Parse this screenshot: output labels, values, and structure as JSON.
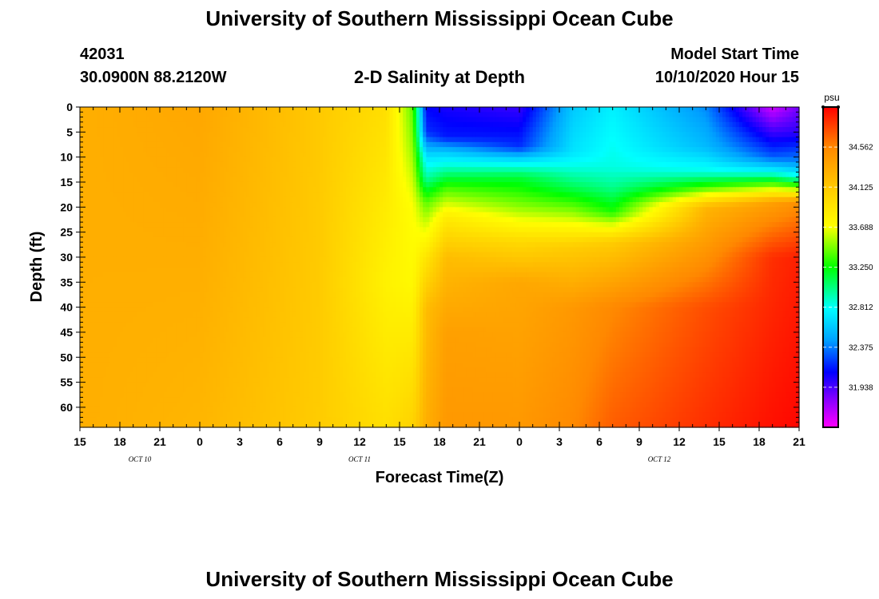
{
  "header": {
    "title_top": "University of Southern Mississippi Ocean Cube",
    "station_id": "42031",
    "station_coords": "30.0900N 88.2120W",
    "plot_title": "2-D Salinity at Depth",
    "model_start_label": "Model Start Time",
    "model_start_value": "10/10/2020 Hour 15"
  },
  "footer": {
    "title_bottom": "University of Southern Mississippi Ocean Cube"
  },
  "chart_data": {
    "type": "heatmap",
    "title": "2-D Salinity at Depth",
    "xlabel": "Forecast Time(Z)",
    "ylabel": "Depth (ft)",
    "unit": "psu",
    "x_hours_range": [
      0,
      54
    ],
    "x_ticks": [
      {
        "hour": 0,
        "label": "15"
      },
      {
        "hour": 3,
        "label": "18"
      },
      {
        "hour": 6,
        "label": "21"
      },
      {
        "hour": 9,
        "label": "0"
      },
      {
        "hour": 12,
        "label": "3"
      },
      {
        "hour": 15,
        "label": "6"
      },
      {
        "hour": 18,
        "label": "9"
      },
      {
        "hour": 21,
        "label": "12"
      },
      {
        "hour": 24,
        "label": "15"
      },
      {
        "hour": 27,
        "label": "18"
      },
      {
        "hour": 30,
        "label": "21"
      },
      {
        "hour": 33,
        "label": "0"
      },
      {
        "hour": 36,
        "label": "3"
      },
      {
        "hour": 39,
        "label": "6"
      },
      {
        "hour": 42,
        "label": "9"
      },
      {
        "hour": 45,
        "label": "12"
      },
      {
        "hour": 48,
        "label": "15"
      },
      {
        "hour": 51,
        "label": "18"
      },
      {
        "hour": 54,
        "label": "21"
      }
    ],
    "date_labels": [
      {
        "hour": 4.5,
        "label": "OCT 10"
      },
      {
        "hour": 21,
        "label": "OCT 11"
      },
      {
        "hour": 43.5,
        "label": "OCT 12"
      }
    ],
    "ylim": [
      0,
      64
    ],
    "y_ticks": [
      0,
      5,
      10,
      15,
      20,
      25,
      30,
      35,
      40,
      45,
      50,
      55,
      60
    ],
    "colorbar": {
      "min": 31.5,
      "max": 35.0,
      "ticks": [
        34.562,
        34.125,
        33.688,
        33.25,
        32.812,
        32.375,
        31.938
      ],
      "tick_labels": [
        "34.562",
        "34.125",
        "33.688",
        "33.250",
        "32.812",
        "32.375",
        "31.938"
      ],
      "stops": [
        {
          "value": 31.5,
          "color": "#ff00ff"
        },
        {
          "value": 31.8,
          "color": "#8800ff"
        },
        {
          "value": 32.1,
          "color": "#0000ff"
        },
        {
          "value": 32.45,
          "color": "#00a0ff"
        },
        {
          "value": 32.8,
          "color": "#00ffff"
        },
        {
          "value": 33.25,
          "color": "#00ff00"
        },
        {
          "value": 33.7,
          "color": "#ffff00"
        },
        {
          "value": 34.1,
          "color": "#ffcc00"
        },
        {
          "value": 34.56,
          "color": "#ff8800"
        },
        {
          "value": 35.0,
          "color": "#ff0000"
        }
      ]
    },
    "profiles": [
      {
        "hour": 0,
        "depths": [
          0,
          64
        ],
        "values": [
          34.3,
          34.3
        ]
      },
      {
        "hour": 9,
        "depths": [
          0,
          64
        ],
        "values": [
          34.35,
          34.25
        ]
      },
      {
        "hour": 18,
        "depths": [
          0,
          64
        ],
        "values": [
          34.12,
          34.1
        ]
      },
      {
        "hour": 23,
        "depths": [
          0,
          20,
          35,
          64
        ],
        "values": [
          33.95,
          33.85,
          33.8,
          33.95
        ]
      },
      {
        "hour": 25,
        "depths": [
          0,
          8,
          20,
          35,
          64
        ],
        "values": [
          33.4,
          33.5,
          33.7,
          33.75,
          34.05
        ]
      },
      {
        "hour": 26,
        "depths": [
          0,
          5,
          10,
          14,
          19,
          23,
          30,
          40,
          64
        ],
        "values": [
          32.1,
          32.2,
          32.7,
          32.95,
          33.4,
          33.6,
          33.9,
          34.2,
          34.3
        ]
      },
      {
        "hour": 27.5,
        "depths": [
          0,
          6,
          9,
          12,
          16,
          22,
          30,
          45,
          64
        ],
        "values": [
          32.05,
          32.15,
          32.6,
          32.9,
          33.35,
          33.85,
          34.2,
          34.4,
          34.45
        ]
      },
      {
        "hour": 33,
        "depths": [
          0,
          8,
          11,
          14,
          20,
          27,
          35,
          64
        ],
        "values": [
          31.98,
          32.2,
          32.75,
          33.15,
          33.5,
          34.0,
          34.35,
          34.45
        ]
      },
      {
        "hour": 37,
        "depths": [
          0,
          9,
          12,
          16,
          21,
          28,
          40,
          64
        ],
        "values": [
          32.6,
          32.7,
          32.85,
          33.1,
          33.5,
          34.1,
          34.45,
          34.55
        ]
      },
      {
        "hour": 40,
        "depths": [
          0,
          12,
          16,
          21,
          27,
          40,
          64
        ],
        "values": [
          32.75,
          32.85,
          33.0,
          33.3,
          34.1,
          34.55,
          34.7
        ]
      },
      {
        "hour": 47,
        "depths": [
          0,
          8,
          13,
          16,
          20,
          40,
          64
        ],
        "values": [
          32.4,
          32.55,
          32.85,
          33.35,
          34.25,
          34.75,
          34.85
        ]
      },
      {
        "hour": 52,
        "depths": [
          0,
          4,
          10,
          13,
          17,
          19,
          30,
          64
        ],
        "values": [
          31.62,
          31.9,
          32.3,
          32.8,
          33.8,
          34.4,
          34.85,
          34.95
        ]
      },
      {
        "hour": 54,
        "depths": [
          0,
          5,
          11,
          14,
          17,
          19,
          30,
          64
        ],
        "values": [
          31.85,
          32.0,
          32.4,
          32.85,
          33.75,
          34.5,
          34.9,
          34.98
        ]
      }
    ]
  }
}
